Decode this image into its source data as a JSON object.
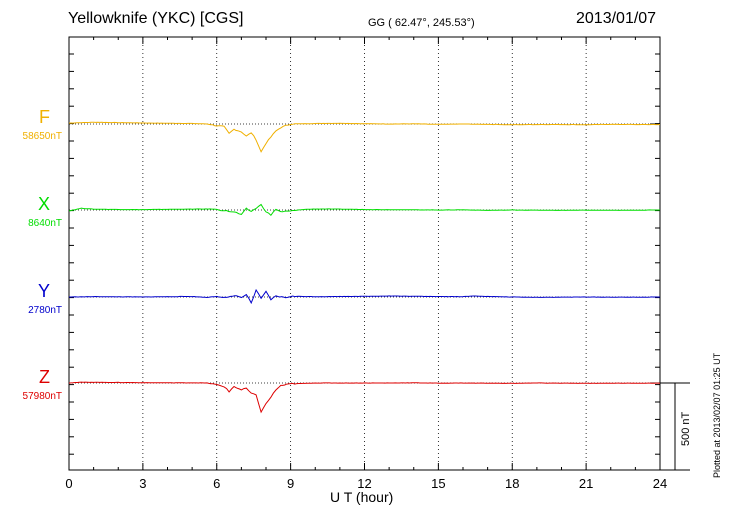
{
  "header": {
    "station": "Yellowknife (YKC)  [CGS]",
    "coords": "GG ( 62.47°, 245.53°)",
    "date": "2013/01/07"
  },
  "components": [
    {
      "letter": "F",
      "baseline": "58650nT",
      "color": "#f0b000"
    },
    {
      "letter": "X",
      "baseline": "8640nT",
      "color": "#00dd00"
    },
    {
      "letter": "Y",
      "baseline": "2780nT",
      "color": "#0000cc"
    },
    {
      "letter": "Z",
      "baseline": "57980nT",
      "color": "#dd0000"
    }
  ],
  "xaxis": {
    "label": "U T (hour)"
  },
  "scale": {
    "label": "500 nT"
  },
  "footer": {
    "plotted": "Plotted at 2013/02/07 01:25 UT"
  },
  "chart_data": {
    "type": "line",
    "title": "Yellowknife (YKC)  [CGS]",
    "xlabel": "U T (hour)",
    "ylabel": "",
    "xlim": [
      0,
      24
    ],
    "xticks": [
      0,
      3,
      6,
      9,
      12,
      15,
      18,
      21,
      24
    ],
    "ylim_nT": [
      -1500,
      450
    ],
    "grid": "vertical dotted at 3-hour intervals",
    "scale_bar_nT": 500,
    "series": [
      {
        "name": "F",
        "offset_nT": 0,
        "color": "#f0b000",
        "points": [
          [
            0,
            5
          ],
          [
            0.5,
            8
          ],
          [
            1,
            10
          ],
          [
            2,
            8
          ],
          [
            3,
            6
          ],
          [
            4,
            4
          ],
          [
            5,
            3
          ],
          [
            5.6,
            0
          ],
          [
            6,
            -10
          ],
          [
            6.3,
            -15
          ],
          [
            6.5,
            -55
          ],
          [
            6.7,
            -30
          ],
          [
            7,
            -45
          ],
          [
            7.2,
            -70
          ],
          [
            7.4,
            -50
          ],
          [
            7.6,
            -90
          ],
          [
            7.8,
            -160
          ],
          [
            8,
            -110
          ],
          [
            8.2,
            -75
          ],
          [
            8.4,
            -40
          ],
          [
            8.6,
            -20
          ],
          [
            8.8,
            -10
          ],
          [
            9,
            0
          ],
          [
            10,
            3
          ],
          [
            11,
            4
          ],
          [
            12,
            2
          ],
          [
            13,
            0
          ],
          [
            14,
            1
          ],
          [
            15,
            -2
          ],
          [
            16,
            0
          ],
          [
            17,
            -2
          ],
          [
            18,
            -4
          ],
          [
            19,
            -3
          ],
          [
            20,
            -3
          ],
          [
            21,
            -4
          ],
          [
            22,
            -2
          ],
          [
            23,
            -3
          ],
          [
            24,
            -3
          ]
        ]
      },
      {
        "name": "X",
        "offset_nT": 0,
        "color": "#00dd00",
        "points": [
          [
            0,
            -5
          ],
          [
            0.5,
            10
          ],
          [
            1,
            5
          ],
          [
            2,
            3
          ],
          [
            3,
            2
          ],
          [
            4,
            4
          ],
          [
            5,
            5
          ],
          [
            5.8,
            6
          ],
          [
            6,
            2
          ],
          [
            6.4,
            -5
          ],
          [
            6.8,
            -15
          ],
          [
            7,
            -28
          ],
          [
            7.2,
            8
          ],
          [
            7.4,
            -8
          ],
          [
            7.6,
            10
          ],
          [
            7.8,
            30
          ],
          [
            8,
            -8
          ],
          [
            8.2,
            -30
          ],
          [
            8.4,
            5
          ],
          [
            8.6,
            -10
          ],
          [
            9,
            -6
          ],
          [
            9.5,
            3
          ],
          [
            10,
            6
          ],
          [
            11,
            5
          ],
          [
            12,
            3
          ],
          [
            13,
            2
          ],
          [
            14,
            1
          ],
          [
            15,
            0
          ],
          [
            16,
            1
          ],
          [
            17,
            -2
          ],
          [
            18,
            0
          ],
          [
            19,
            -1
          ],
          [
            20,
            -2
          ],
          [
            21,
            -1
          ],
          [
            22,
            -2
          ],
          [
            23,
            -1
          ],
          [
            24,
            0
          ]
        ]
      },
      {
        "name": "Y",
        "offset_nT": 0,
        "color": "#0000cc",
        "points": [
          [
            0,
            0
          ],
          [
            1,
            2
          ],
          [
            2,
            1
          ],
          [
            3,
            0
          ],
          [
            4,
            2
          ],
          [
            5,
            3
          ],
          [
            5.6,
            -3
          ],
          [
            6,
            5
          ],
          [
            6.4,
            -5
          ],
          [
            6.8,
            10
          ],
          [
            7,
            -5
          ],
          [
            7.2,
            15
          ],
          [
            7.4,
            -35
          ],
          [
            7.6,
            40
          ],
          [
            7.8,
            -10
          ],
          [
            8,
            30
          ],
          [
            8.2,
            -15
          ],
          [
            8.4,
            5
          ],
          [
            8.8,
            -3
          ],
          [
            9,
            4
          ],
          [
            10,
            2
          ],
          [
            11,
            3
          ],
          [
            12,
            4
          ],
          [
            13,
            6
          ],
          [
            14,
            4
          ],
          [
            15,
            3
          ],
          [
            16,
            2
          ],
          [
            16.5,
            6
          ],
          [
            17,
            3
          ],
          [
            18,
            0
          ],
          [
            19,
            -2
          ],
          [
            20,
            -1
          ],
          [
            21,
            0
          ],
          [
            22,
            -1
          ],
          [
            23,
            -1
          ],
          [
            24,
            0
          ]
        ]
      },
      {
        "name": "Z",
        "offset_nT": 0,
        "color": "#dd0000",
        "points": [
          [
            0,
            0
          ],
          [
            0.5,
            5
          ],
          [
            1,
            4
          ],
          [
            2,
            3
          ],
          [
            3,
            2
          ],
          [
            4,
            1
          ],
          [
            5,
            1
          ],
          [
            5.6,
            0
          ],
          [
            6,
            -10
          ],
          [
            6.3,
            -20
          ],
          [
            6.5,
            -50
          ],
          [
            6.7,
            -20
          ],
          [
            7,
            -40
          ],
          [
            7.2,
            -30
          ],
          [
            7.4,
            -60
          ],
          [
            7.6,
            -70
          ],
          [
            7.8,
            -165
          ],
          [
            8,
            -120
          ],
          [
            8.2,
            -80
          ],
          [
            8.4,
            -40
          ],
          [
            8.6,
            -15
          ],
          [
            9,
            -5
          ],
          [
            10,
            0
          ],
          [
            11,
            0
          ],
          [
            12,
            0
          ],
          [
            13,
            0
          ],
          [
            14,
            1
          ],
          [
            15,
            -1
          ],
          [
            16,
            0
          ],
          [
            17,
            -1
          ],
          [
            18,
            -2
          ],
          [
            19,
            0
          ],
          [
            20,
            -1
          ],
          [
            21,
            -2
          ],
          [
            22,
            -1
          ],
          [
            23,
            -1
          ],
          [
            24,
            -1
          ]
        ]
      }
    ]
  }
}
